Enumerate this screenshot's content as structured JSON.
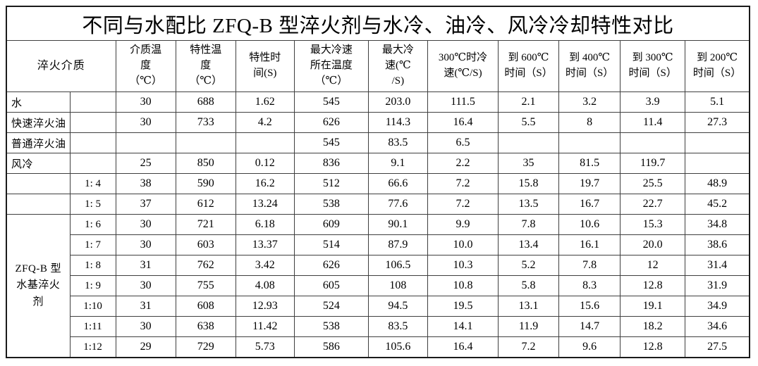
{
  "title": "不同与水配比 ZFQ-B 型淬火剂与水冷、油冷、风冷冷却特性对比",
  "colors": {
    "background": "#ffffff",
    "text": "#000000",
    "grid_border": "#3f3f3f",
    "outer_border": "#1a1a1a"
  },
  "header": {
    "medium": "淬火介质",
    "cols": [
      "介质温\n度\n（℃）",
      "特性温\n度\n（℃）",
      "特性时\n间(S)",
      "最大冷速\n所在温度\n（℃）",
      "最大冷\n速(℃\n/S)",
      "300℃时冷\n速(℃/S)",
      "到 600℃\n时间（S）",
      "到 400℃\n时间（S）",
      "到 300℃\n时间（S）",
      "到 200℃\n时间（S）"
    ]
  },
  "rows": [
    {
      "c0": "水",
      "c0_span": 1,
      "ratio": "",
      "vals": [
        "30",
        "688",
        "1.62",
        "545",
        "203.0",
        "111.5",
        "2.1",
        "3.2",
        "3.9",
        "5.1"
      ]
    },
    {
      "c0": "快速淬火油",
      "c0_span": 1,
      "ratio": "",
      "vals": [
        "30",
        "733",
        "4.2",
        "626",
        "114.3",
        "16.4",
        "5.5",
        "8",
        "11.4",
        "27.3"
      ]
    },
    {
      "c0": "普通淬火油",
      "c0_span": 1,
      "ratio": "",
      "vals": [
        "",
        "",
        "",
        "545",
        "83.5",
        "6.5",
        "",
        "",
        "",
        ""
      ]
    },
    {
      "c0": "风冷",
      "c0_span": 1,
      "ratio": "",
      "vals": [
        "25",
        "850",
        "0.12",
        "836",
        "9.1",
        "2.2",
        "35",
        "81.5",
        "119.7",
        ""
      ]
    },
    {
      "c0": "",
      "c0_span": 1,
      "ratio": "1: 4",
      "vals": [
        "38",
        "590",
        "16.2",
        "512",
        "66.6",
        "7.2",
        "15.8",
        "19.7",
        "25.5",
        "48.9"
      ]
    },
    {
      "c0": "",
      "c0_span": 1,
      "ratio": "1: 5",
      "vals": [
        "37",
        "612",
        "13.24",
        "538",
        "77.6",
        "7.2",
        "13.5",
        "16.7",
        "22.7",
        "45.2"
      ]
    },
    {
      "c0": "ZFQ-B 型\n水基淬火\n剂",
      "c0_span": 7,
      "ratio": "1: 6",
      "vals": [
        "30",
        "721",
        "6.18",
        "609",
        "90.1",
        "9.9",
        "7.8",
        "10.6",
        "15.3",
        "34.8"
      ]
    },
    {
      "c0": null,
      "c0_span": 0,
      "ratio": "1: 7",
      "vals": [
        "30",
        "603",
        "13.37",
        "514",
        "87.9",
        "10.0",
        "13.4",
        "16.1",
        "20.0",
        "38.6"
      ]
    },
    {
      "c0": null,
      "c0_span": 0,
      "ratio": "1: 8",
      "vals": [
        "31",
        "762",
        "3.42",
        "626",
        "106.5",
        "10.3",
        "5.2",
        "7.8",
        "12",
        "31.4"
      ]
    },
    {
      "c0": null,
      "c0_span": 0,
      "ratio": "1: 9",
      "vals": [
        "30",
        "755",
        "4.08",
        "605",
        "108",
        "10.8",
        "5.8",
        "8.3",
        "12.8",
        "31.9"
      ]
    },
    {
      "c0": null,
      "c0_span": 0,
      "ratio": "1:10",
      "vals": [
        "31",
        "608",
        "12.93",
        "524",
        "94.5",
        "19.5",
        "13.1",
        "15.6",
        "19.1",
        "34.9"
      ]
    },
    {
      "c0": null,
      "c0_span": 0,
      "ratio": "1:11",
      "vals": [
        "30",
        "638",
        "11.42",
        "538",
        "83.5",
        "14.1",
        "11.9",
        "14.7",
        "18.2",
        "34.6"
      ]
    },
    {
      "c0": null,
      "c0_span": 0,
      "ratio": "1:12",
      "vals": [
        "29",
        "729",
        "5.73",
        "586",
        "105.6",
        "16.4",
        "7.2",
        "9.6",
        "12.8",
        "27.5"
      ]
    }
  ]
}
